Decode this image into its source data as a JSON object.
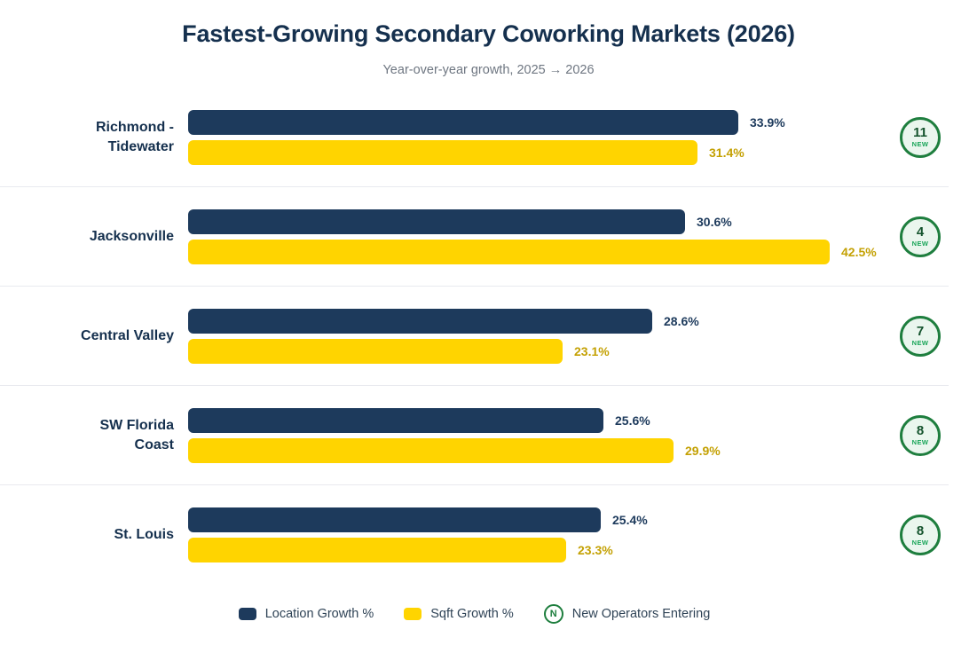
{
  "header": {
    "title": "Fastest-Growing Secondary Coworking Markets (2026)",
    "subtitle": "Year-over-year growth, 2025 → 2026"
  },
  "badge": {
    "new_label": "NEW"
  },
  "legend": {
    "items": [
      {
        "label": "Location Growth %",
        "swatch": "navy-swatch",
        "name": "legend-item-location-growth",
        "icon_name": "location-growth-swatch-icon"
      },
      {
        "label": "Sqft Growth %",
        "swatch": "yellow-swatch",
        "name": "legend-item-sqft-growth",
        "icon_name": "sqft-growth-swatch-icon"
      },
      {
        "label": "New Operators Entering",
        "swatch": "green-circle-n",
        "glyph": "N",
        "name": "legend-item-new-operators",
        "icon_name": "new-operators-circle-icon"
      }
    ]
  },
  "colors": {
    "navy": "#1d3a5c",
    "yellow": "#ffd400",
    "gold_value_text": "#c4a104",
    "green_ring": "#1e7e3e",
    "green_badge_fill": "#eaf6ee",
    "badge_number_text": "#14532d",
    "badge_new_text": "#18a558",
    "title_text": "#15304e",
    "subtitle_text": "#6e7681",
    "divider": "#e9eaef",
    "legend_text": "#2f4356"
  },
  "chart_data": {
    "type": "bar",
    "orientation": "horizontal",
    "title": "Fastest-Growing Secondary Coworking Markets (2026)",
    "subtitle": "Year-over-year growth, 2025 → 2026",
    "categories": [
      "Richmond -\nTidewater",
      "Jacksonville",
      "Central Valley",
      "SW Florida\nCoast",
      "St. Louis"
    ],
    "series": [
      {
        "name": "Location Growth %",
        "color": "#1d3a5c",
        "values": [
          33.9,
          30.6,
          28.6,
          25.6,
          25.4
        ]
      },
      {
        "name": "Sqft Growth %",
        "color": "#ffd400",
        "values": [
          31.4,
          42.5,
          23.1,
          29.9,
          23.3
        ]
      }
    ],
    "annotations": {
      "name": "New Operators Entering",
      "values": [
        11,
        4,
        7,
        8,
        8
      ]
    },
    "value_suffix": "%",
    "xlim": [
      0,
      42.5
    ],
    "grid": false,
    "legend_position": "bottom"
  }
}
